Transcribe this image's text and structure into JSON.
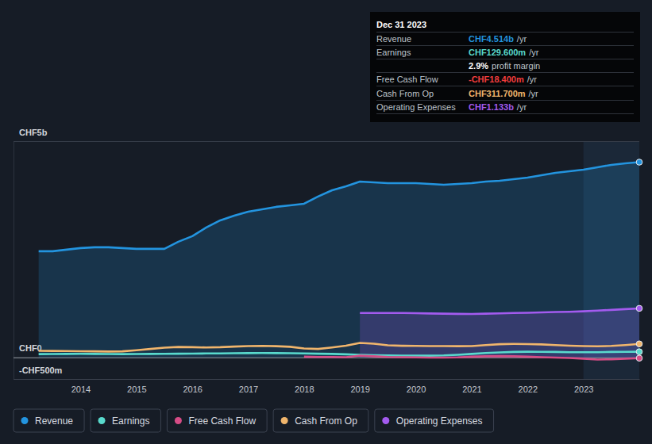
{
  "chart_data": {
    "type": "line",
    "x": [
      2013.25,
      2013.5,
      2013.75,
      2014.0,
      2014.25,
      2014.5,
      2014.75,
      2015.0,
      2015.25,
      2015.5,
      2015.75,
      2016.0,
      2016.25,
      2016.5,
      2016.75,
      2017.0,
      2017.25,
      2017.5,
      2017.75,
      2018.0,
      2018.25,
      2018.5,
      2018.75,
      2019.0,
      2019.25,
      2019.5,
      2019.75,
      2020.0,
      2020.25,
      2020.5,
      2020.75,
      2021.0,
      2021.25,
      2021.5,
      2021.75,
      2022.0,
      2022.25,
      2022.5,
      2022.75,
      2023.0,
      2023.25,
      2023.5,
      2023.75,
      2024.0
    ],
    "series": [
      {
        "name": "Revenue",
        "color": "#2394DF",
        "type": "area",
        "values": [
          2454,
          2454,
          2491,
          2527,
          2546,
          2546,
          2527,
          2509,
          2509,
          2509,
          2674,
          2802,
          3004,
          3168,
          3278,
          3370,
          3425,
          3480,
          3516,
          3553,
          3718,
          3864,
          3956,
          4066,
          4048,
          4029,
          4029,
          4029,
          4011,
          3993,
          4011,
          4029,
          4066,
          4084,
          4121,
          4158,
          4212,
          4267,
          4304,
          4341,
          4396,
          4451,
          4487,
          4514
        ]
      },
      {
        "name": "Earnings",
        "color": "#59DACD",
        "type": "line",
        "values": [
          75,
          78,
          80,
          82,
          80,
          78,
          76,
          78,
          80,
          82,
          85,
          88,
          90,
          92,
          95,
          98,
          100,
          98,
          95,
          90,
          85,
          80,
          70,
          60,
          50,
          45,
          40,
          40,
          38,
          45,
          60,
          80,
          100,
          115,
          125,
          130,
          128,
          125,
          120,
          118,
          120,
          125,
          128,
          129.6
        ]
      },
      {
        "name": "Free Cash Flow",
        "color": "#D64C86",
        "type": "line",
        "values": [
          null,
          null,
          null,
          null,
          null,
          null,
          null,
          null,
          null,
          null,
          null,
          null,
          null,
          null,
          null,
          null,
          null,
          null,
          null,
          15,
          10,
          8,
          5,
          40,
          25,
          10,
          5,
          0,
          -5,
          -5,
          0,
          15,
          25,
          30,
          25,
          15,
          5,
          -5,
          -15,
          -30,
          -50,
          -45,
          -30,
          -18.4
        ]
      },
      {
        "name": "Cash From Op",
        "color": "#F0B56C",
        "type": "line",
        "values": [
          150,
          148,
          145,
          142,
          140,
          135,
          140,
          165,
          195,
          225,
          240,
          235,
          228,
          235,
          250,
          262,
          265,
          258,
          245,
          205,
          195,
          230,
          270,
          335,
          315,
          280,
          268,
          265,
          262,
          260,
          258,
          262,
          285,
          305,
          310,
          308,
          300,
          285,
          270,
          260,
          255,
          265,
          285,
          311.7
        ]
      },
      {
        "name": "Operating Expenses",
        "color": "#A35BEF",
        "type": "area",
        "values": [
          null,
          null,
          null,
          null,
          null,
          null,
          null,
          null,
          null,
          null,
          null,
          null,
          null,
          null,
          null,
          null,
          null,
          null,
          null,
          null,
          null,
          null,
          null,
          1026,
          1027,
          1027,
          1026,
          1022,
          1015,
          1010,
          1005,
          1003,
          1010,
          1018,
          1025,
          1032,
          1040,
          1048,
          1055,
          1065,
          1080,
          1098,
          1115,
          1133
        ]
      }
    ],
    "xlim": [
      2012.8,
      2024.0
    ],
    "xticks": [
      2014,
      2015,
      2016,
      2017,
      2018,
      2019,
      2020,
      2021,
      2022,
      2023
    ],
    "ylim": [
      -500,
      5000
    ],
    "yticks": [
      {
        "value": -500,
        "label": "-CHF500m"
      },
      {
        "value": 0,
        "label": "CHF0"
      },
      {
        "value": 5000,
        "label": "CHF5b"
      }
    ],
    "grid": true,
    "legend": "bottom",
    "tooltip": {
      "title": "Dec 31 2023",
      "rows": [
        {
          "label": "Revenue",
          "value": "CHF4.514b",
          "unit": "/yr",
          "color": "#2394DF"
        },
        {
          "label": "Earnings",
          "value": "CHF129.600m",
          "unit": "/yr",
          "color": "#59DACD"
        },
        {
          "value": "2.9%",
          "unit": "profit margin",
          "color": "#FFFFFF"
        },
        {
          "label": "Free Cash Flow",
          "value": "-CHF18.400m",
          "unit": "/yr",
          "color": "#F23D3D"
        },
        {
          "label": "Cash From Op",
          "value": "CHF311.700m",
          "unit": "/yr",
          "color": "#F0B56C"
        },
        {
          "label": "Operating Expenses",
          "value": "CHF1.133b",
          "unit": "/yr",
          "color": "#A35BEF"
        }
      ]
    }
  }
}
